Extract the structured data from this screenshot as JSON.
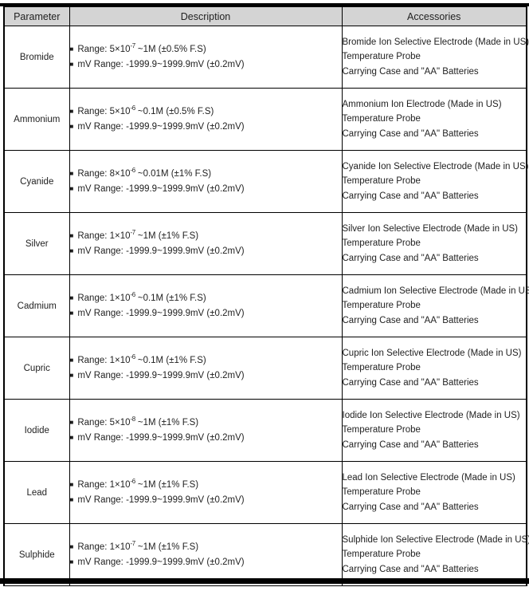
{
  "colors": {
    "header_bg": "#d4d4d4",
    "border": "#000000",
    "text": "#1f1f1f",
    "page_bg": "#ffffff"
  },
  "table": {
    "bullet": "■",
    "headers": {
      "parameter": "Parameter",
      "description": "Description",
      "accessories": "Accessories"
    },
    "rows": [
      {
        "param": "Bromide",
        "range_prefix": "Range: 5×10",
        "range_exp": "-7",
        "range_suffix": " ~1M (±0.5% F.S)",
        "mv_range": "mV Range: -1999.9~1999.9mV (±0.2mV)",
        "accessories": [
          "Bromide Ion Selective Electrode (Made in US)",
          "Temperature Probe",
          "Carrying Case and \"AA\" Batteries"
        ]
      },
      {
        "param": "Ammonium",
        "range_prefix": "Range: 5×10",
        "range_exp": "-6",
        "range_suffix": " ~0.1M (±0.5% F.S)",
        "mv_range": "mV Range: -1999.9~1999.9mV (±0.2mV)",
        "accessories": [
          "Ammonium Ion Electrode (Made in US)",
          "Temperature Probe",
          "Carrying Case and \"AA\" Batteries"
        ]
      },
      {
        "param": "Cyanide",
        "range_prefix": "Range: 8×10",
        "range_exp": "-6",
        "range_suffix": " ~0.01M (±1% F.S)",
        "mv_range": "mV Range: -1999.9~1999.9mV (±0.2mV)",
        "accessories": [
          "Cyanide Ion Selective Electrode (Made in US)",
          "Temperature Probe",
          "Carrying Case and \"AA\" Batteries"
        ]
      },
      {
        "param": "Silver",
        "range_prefix": "Range: 1×10",
        "range_exp": "-7",
        "range_suffix": " ~1M (±1% F.S)",
        "mv_range": "mV Range: -1999.9~1999.9mV (±0.2mV)",
        "accessories": [
          "Silver Ion Selective Electrode (Made in US)",
          "Temperature Probe",
          "Carrying Case and \"AA\" Batteries"
        ]
      },
      {
        "param": "Cadmium",
        "range_prefix": "Range: 1×10",
        "range_exp": "-6",
        "range_suffix": " ~0.1M (±1% F.S)",
        "mv_range": "mV Range: -1999.9~1999.9mV (±0.2mV)",
        "accessories": [
          "Cadmium Ion Selective Electrode (Made in US)",
          "Temperature Probe",
          "Carrying Case and \"AA\" Batteries"
        ]
      },
      {
        "param": "Cupric",
        "range_prefix": "Range: 1×10",
        "range_exp": "-6",
        "range_suffix": " ~0.1M (±1% F.S)",
        "mv_range": "mV Range: -1999.9~1999.9mV (±0.2mV)",
        "accessories": [
          "Cupric Ion Selective Electrode (Made in US)",
          "Temperature Probe",
          "Carrying Case and \"AA\" Batteries"
        ]
      },
      {
        "param": "Iodide",
        "range_prefix": "Range: 5×10",
        "range_exp": "-8",
        "range_suffix": " ~1M (±1% F.S)",
        "mv_range": "mV Range: -1999.9~1999.9mV (±0.2mV)",
        "accessories": [
          "Iodide Ion Selective Electrode (Made in US)",
          "Temperature Probe",
          "Carrying Case and \"AA\" Batteries"
        ]
      },
      {
        "param": "Lead",
        "range_prefix": "Range: 1×10",
        "range_exp": "-6",
        "range_suffix": " ~1M (±1% F.S)",
        "mv_range": "mV Range: -1999.9~1999.9mV (±0.2mV)",
        "accessories": [
          "Lead Ion Selective Electrode (Made in US)",
          "Temperature Probe",
          "Carrying Case and \"AA\" Batteries"
        ]
      },
      {
        "param": "Sulphide",
        "range_prefix": "Range: 1×10",
        "range_exp": "-7",
        "range_suffix": " ~1M (±1% F.S)",
        "mv_range": "mV Range: -1999.9~1999.9mV (±0.2mV)",
        "accessories": [
          "Sulphide Ion Selective Electrode (Made in US)",
          "Temperature Probe",
          "Carrying Case and \"AA\" Batteries"
        ]
      }
    ]
  }
}
